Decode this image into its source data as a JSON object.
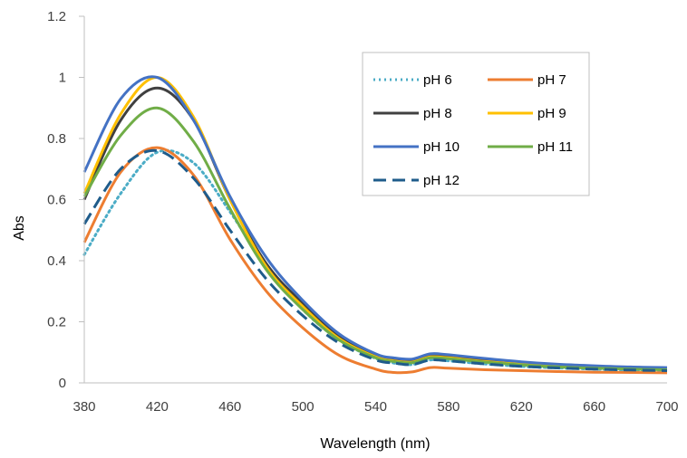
{
  "chart_data": {
    "type": "line",
    "title": "",
    "xlabel": "Wavelength (nm)",
    "ylabel": "Abs",
    "xlim": [
      380,
      700
    ],
    "ylim": [
      0,
      1.2
    ],
    "xticks": [
      380,
      420,
      460,
      500,
      540,
      580,
      620,
      660,
      700
    ],
    "xtick_labels": [
      "380",
      "420",
      "460",
      "500",
      "540",
      "580",
      "620",
      "660",
      "700"
    ],
    "yticks": [
      0,
      0.2,
      0.4,
      0.6,
      0.8,
      1.0,
      1.2
    ],
    "ytick_labels": [
      "0",
      "0.2",
      "0.4",
      "0.6",
      "0.8",
      "1",
      "1.2"
    ],
    "grid": false,
    "legend_position": "top-right",
    "x": [
      380,
      400,
      420,
      440,
      460,
      480,
      500,
      520,
      540,
      550,
      560,
      570,
      580,
      600,
      620,
      640,
      660,
      680,
      700
    ],
    "series": [
      {
        "name": "pH 6",
        "color": "#4BACC6",
        "dash": "dotted",
        "values": [
          0.42,
          0.62,
          0.755,
          0.72,
          0.56,
          0.38,
          0.24,
          0.14,
          0.08,
          0.065,
          0.06,
          0.075,
          0.072,
          0.062,
          0.054,
          0.049,
          0.045,
          0.042,
          0.04
        ]
      },
      {
        "name": "pH 7",
        "color": "#ED7D31",
        "dash": "solid",
        "values": [
          0.46,
          0.69,
          0.77,
          0.68,
          0.47,
          0.3,
          0.18,
          0.09,
          0.045,
          0.034,
          0.036,
          0.05,
          0.048,
          0.043,
          0.04,
          0.037,
          0.035,
          0.034,
          0.033
        ]
      },
      {
        "name": "pH 8",
        "color": "#404040",
        "dash": "solid",
        "values": [
          0.6,
          0.86,
          0.965,
          0.86,
          0.6,
          0.39,
          0.26,
          0.15,
          0.088,
          0.075,
          0.07,
          0.088,
          0.085,
          0.073,
          0.063,
          0.056,
          0.051,
          0.048,
          0.046
        ]
      },
      {
        "name": "pH 9",
        "color": "#FFC000",
        "dash": "solid",
        "values": [
          0.62,
          0.88,
          1.0,
          0.87,
          0.6,
          0.38,
          0.25,
          0.145,
          0.085,
          0.072,
          0.068,
          0.085,
          0.082,
          0.07,
          0.061,
          0.054,
          0.049,
          0.046,
          0.044
        ]
      },
      {
        "name": "pH 10",
        "color": "#4472C4",
        "dash": "solid",
        "values": [
          0.69,
          0.93,
          1.0,
          0.86,
          0.61,
          0.41,
          0.27,
          0.16,
          0.095,
          0.082,
          0.078,
          0.095,
          0.092,
          0.08,
          0.069,
          0.061,
          0.056,
          0.052,
          0.05
        ]
      },
      {
        "name": "pH 11",
        "color": "#70AD47",
        "dash": "solid",
        "values": [
          0.61,
          0.81,
          0.9,
          0.79,
          0.57,
          0.37,
          0.24,
          0.14,
          0.082,
          0.07,
          0.066,
          0.082,
          0.079,
          0.068,
          0.059,
          0.052,
          0.048,
          0.045,
          0.043
        ]
      },
      {
        "name": "pH 12",
        "color": "#1F5C8B",
        "dash": "dashed",
        "values": [
          0.52,
          0.7,
          0.76,
          0.67,
          0.5,
          0.34,
          0.22,
          0.13,
          0.075,
          0.065,
          0.06,
          0.075,
          0.072,
          0.062,
          0.054,
          0.049,
          0.045,
          0.042,
          0.04
        ]
      }
    ]
  }
}
